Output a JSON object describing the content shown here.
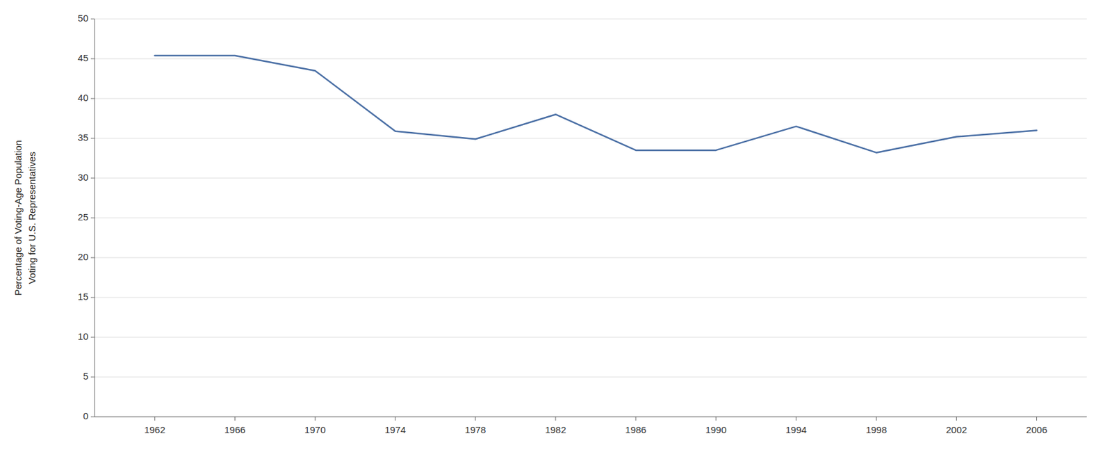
{
  "chart_data": {
    "type": "line",
    "y_label": "Percentage of Voting-Age Population\nVoting for U.S. Representatives",
    "x": [
      1962,
      1966,
      1970,
      1974,
      1978,
      1982,
      1986,
      1990,
      1994,
      1998,
      2002,
      2006
    ],
    "values": [
      45.4,
      45.4,
      43.5,
      35.9,
      34.9,
      38.0,
      33.5,
      33.5,
      36.5,
      33.2,
      35.2,
      36.0
    ],
    "color": "#4a6fa5",
    "xlim": [
      1959,
      2008.5
    ],
    "xticks": [
      1962,
      1966,
      1970,
      1974,
      1978,
      1982,
      1986,
      1990,
      1994,
      1998,
      2002,
      2006
    ],
    "ylim": [
      0,
      50
    ],
    "yticks": [
      0,
      5,
      10,
      15,
      20,
      25,
      30,
      35,
      40,
      45,
      50
    ],
    "grid": true
  }
}
